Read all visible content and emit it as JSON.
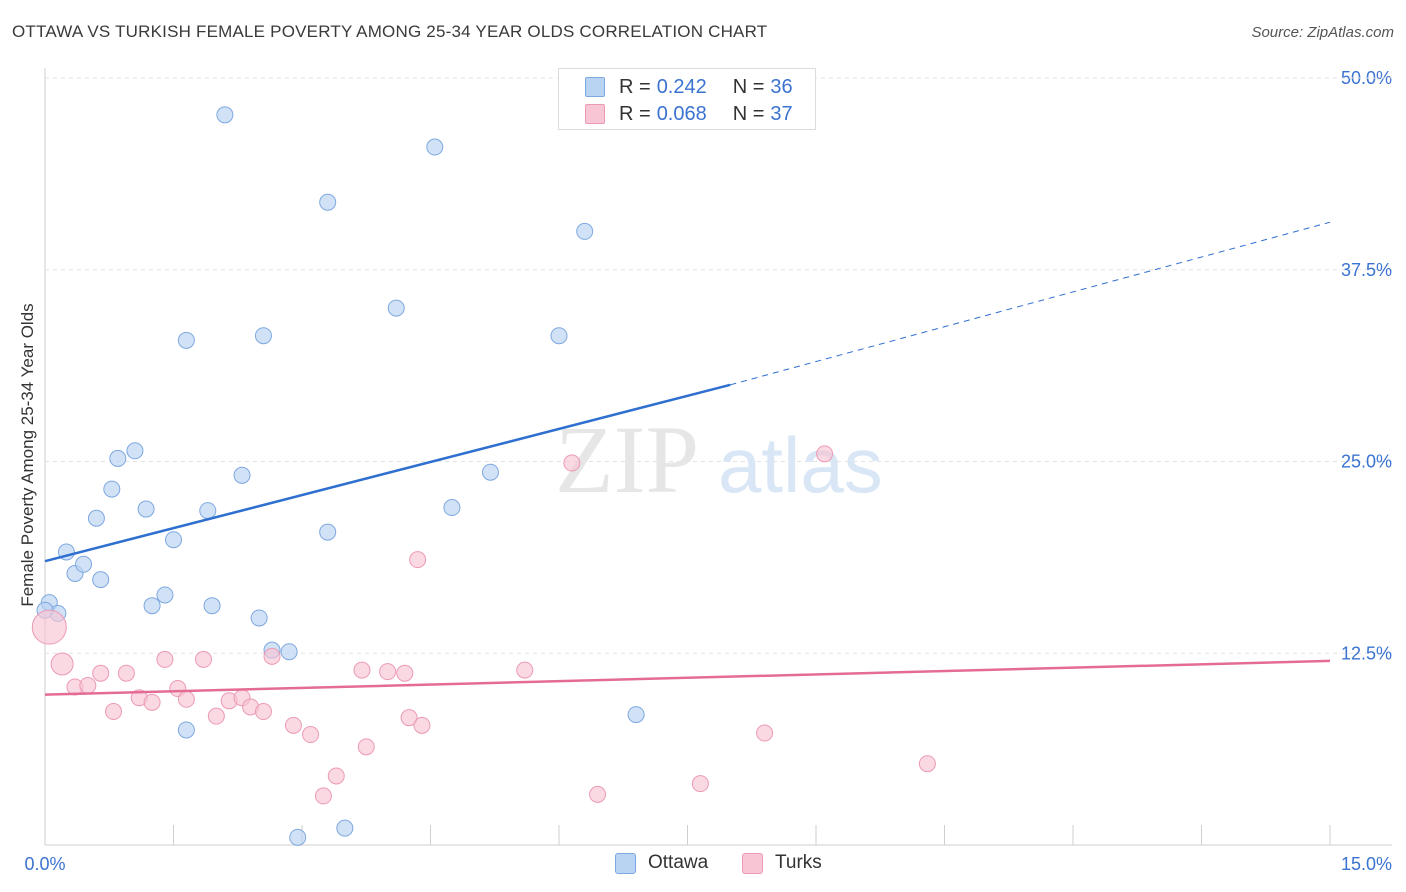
{
  "header": {
    "title": "OTTAWA VS TURKISH FEMALE POVERTY AMONG 25-34 YEAR OLDS CORRELATION CHART",
    "source": "Source: ZipAtlas.com"
  },
  "watermark": {
    "zip": "ZIP",
    "atlas": "atlas"
  },
  "legend": {
    "ottawa": {
      "r_label": "R =",
      "r_value": "0.242",
      "n_label": "N =",
      "n_value": "36"
    },
    "turks": {
      "r_label": "R =",
      "r_value": "0.068",
      "n_label": "N =",
      "n_value": "37"
    }
  },
  "bottom_legend": {
    "ottawa": "Ottawa",
    "turks": "Turks"
  },
  "colors": {
    "ottawa_fill": "#b9d3f3",
    "ottawa_stroke": "#7ea8e0",
    "ottawa_line": "#2f6fcf",
    "turks_fill": "#f8c5d4",
    "turks_stroke": "#ec9ab4",
    "turks_line": "#e46c94",
    "tick_label": "#3b73d1",
    "grid": "#e3e3e3"
  },
  "chart_data": {
    "type": "scatter",
    "title": "OTTAWA VS TURKISH FEMALE POVERTY AMONG 25-34 YEAR OLDS CORRELATION CHART",
    "xlabel": "",
    "ylabel": "Female Poverty Among 25-34 Year Olds",
    "xlim": [
      0,
      15
    ],
    "ylim": [
      0,
      52
    ],
    "x_tick_labels": [
      "0.0%",
      "15.0%"
    ],
    "y_ticks": [
      12.5,
      25.0,
      37.5,
      50.0
    ],
    "y_tick_labels": [
      "12.5%",
      "25.0%",
      "37.5%",
      "50.0%"
    ],
    "grid": true,
    "legend_position": "top-center",
    "series": [
      {
        "name": "Ottawa",
        "r": 0.242,
        "n": 36,
        "points": [
          [
            0.05,
            15.8
          ],
          [
            0.15,
            15.1
          ],
          [
            0.25,
            19.1
          ],
          [
            0.35,
            17.7
          ],
          [
            0.45,
            18.3
          ],
          [
            0.6,
            21.3
          ],
          [
            0.65,
            17.3
          ],
          [
            0.78,
            23.2
          ],
          [
            0.85,
            25.2
          ],
          [
            1.05,
            25.7
          ],
          [
            1.18,
            21.9
          ],
          [
            1.25,
            15.6
          ],
          [
            1.4,
            16.3
          ],
          [
            1.5,
            19.9
          ],
          [
            1.65,
            7.5
          ],
          [
            1.65,
            32.9
          ],
          [
            1.9,
            21.8
          ],
          [
            1.95,
            15.6
          ],
          [
            2.1,
            47.6
          ],
          [
            2.3,
            24.1
          ],
          [
            2.5,
            14.8
          ],
          [
            2.55,
            33.2
          ],
          [
            2.65,
            12.7
          ],
          [
            2.85,
            12.6
          ],
          [
            2.95,
            0.5
          ],
          [
            3.3,
            20.4
          ],
          [
            3.3,
            41.9
          ],
          [
            3.5,
            1.1
          ],
          [
            4.1,
            35.0
          ],
          [
            4.55,
            45.5
          ],
          [
            4.75,
            22.0
          ],
          [
            5.2,
            24.3
          ],
          [
            6.0,
            33.2
          ],
          [
            6.3,
            40.0
          ],
          [
            6.9,
            8.5
          ],
          [
            0.0,
            15.3
          ]
        ]
      },
      {
        "name": "Turks",
        "r": 0.068,
        "n": 37,
        "points": [
          [
            0.05,
            14.2
          ],
          [
            0.2,
            11.8
          ],
          [
            0.35,
            10.3
          ],
          [
            0.5,
            10.4
          ],
          [
            0.65,
            11.2
          ],
          [
            0.8,
            8.7
          ],
          [
            0.95,
            11.2
          ],
          [
            1.1,
            9.6
          ],
          [
            1.25,
            9.3
          ],
          [
            1.4,
            12.1
          ],
          [
            1.55,
            10.2
          ],
          [
            1.65,
            9.5
          ],
          [
            1.85,
            12.1
          ],
          [
            2.0,
            8.4
          ],
          [
            2.15,
            9.4
          ],
          [
            2.3,
            9.6
          ],
          [
            2.4,
            9.0
          ],
          [
            2.55,
            8.7
          ],
          [
            2.65,
            12.3
          ],
          [
            2.9,
            7.8
          ],
          [
            3.1,
            7.2
          ],
          [
            3.25,
            3.2
          ],
          [
            3.4,
            4.5
          ],
          [
            3.7,
            11.4
          ],
          [
            3.75,
            6.4
          ],
          [
            4.0,
            11.3
          ],
          [
            4.2,
            11.2
          ],
          [
            4.25,
            8.3
          ],
          [
            4.4,
            7.8
          ],
          [
            4.35,
            18.6
          ],
          [
            5.6,
            11.4
          ],
          [
            6.15,
            24.9
          ],
          [
            6.45,
            3.3
          ],
          [
            7.65,
            4.0
          ],
          [
            8.4,
            7.3
          ],
          [
            9.1,
            25.5
          ],
          [
            10.3,
            5.3
          ]
        ]
      }
    ],
    "trend_lines": [
      {
        "name": "Ottawa",
        "solid": [
          [
            0,
            18.5
          ],
          [
            8.0,
            30.0
          ]
        ],
        "dashed": [
          [
            8.0,
            30.0
          ],
          [
            15.0,
            40.6
          ]
        ]
      },
      {
        "name": "Turks",
        "solid": [
          [
            0,
            9.8
          ],
          [
            15.0,
            12.0
          ]
        ]
      }
    ]
  }
}
